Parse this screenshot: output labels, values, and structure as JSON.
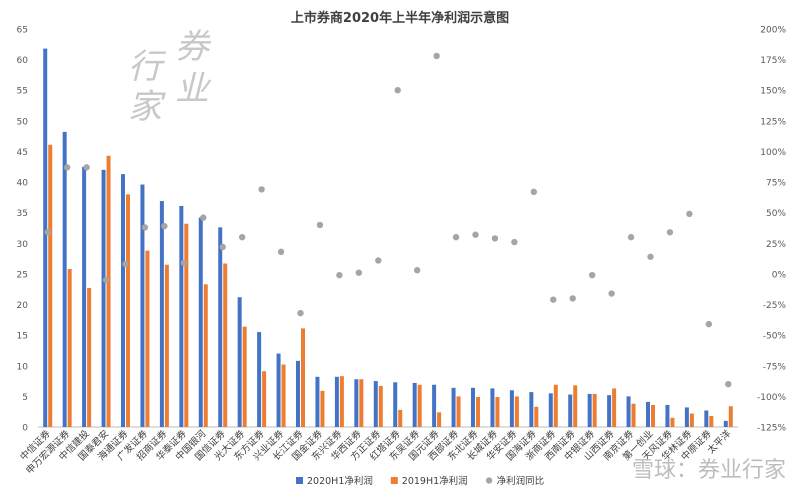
{
  "chart_data": {
    "type": "bar",
    "title": "上市券商2020年上半年净利润示意图",
    "categories": [
      "中信证券",
      "申万宏源证券",
      "中信建投",
      "国泰君安",
      "海通证券",
      "广发证券",
      "招商证券",
      "华泰证券",
      "中国银河",
      "国信证券",
      "光大证券",
      "东方证券",
      "兴业证券",
      "长江证券",
      "国金证券",
      "东兴证券",
      "华西证券",
      "方正证券",
      "红塔证券",
      "东吴证券",
      "国元证券",
      "西部证券",
      "东北证券",
      "长城证券",
      "华安证券",
      "国海证券",
      "浙商证券",
      "西南证券",
      "中银证券",
      "山西证券",
      "南京证券",
      "第一创业",
      "天风证券",
      "华林证券",
      "中原证券",
      "太平洋"
    ],
    "series": [
      {
        "name": "2020H1净利润",
        "color": "#4472c4",
        "axis": "left",
        "values": [
          61.8,
          48.2,
          42.5,
          42.0,
          41.3,
          39.6,
          36.9,
          36.1,
          34.2,
          32.6,
          21.2,
          15.5,
          12.0,
          10.8,
          8.2,
          8.2,
          7.8,
          7.5,
          7.3,
          7.2,
          6.9,
          6.4,
          6.4,
          6.3,
          6.0,
          5.7,
          5.5,
          5.3,
          5.4,
          5.2,
          5.0,
          4.1,
          3.6,
          3.2,
          2.7,
          1.0
        ]
      },
      {
        "name": "2019H1净利润",
        "color": "#ed7d31",
        "axis": "left",
        "values": [
          46.1,
          25.8,
          22.7,
          44.3,
          38.0,
          28.8,
          26.5,
          33.2,
          23.3,
          26.7,
          16.4,
          9.1,
          10.2,
          16.1,
          5.9,
          8.3,
          7.8,
          6.7,
          2.8,
          6.9,
          2.4,
          5.0,
          4.9,
          4.9,
          5.0,
          3.3,
          6.9,
          6.8,
          5.4,
          6.3,
          3.8,
          3.6,
          1.5,
          2.2,
          1.8,
          3.4
        ]
      },
      {
        "name": "净利润同比",
        "color": "#a5a5a5",
        "axis": "right",
        "values": [
          34,
          87,
          87,
          -5,
          8,
          38,
          39,
          9,
          46,
          22,
          30,
          69,
          18,
          -32,
          40,
          -1,
          1,
          11,
          150,
          3,
          178,
          30,
          32,
          29,
          26,
          67,
          -21,
          -20,
          -1,
          -16,
          30,
          14,
          34,
          49,
          -41,
          -90
        ]
      }
    ],
    "y_left": {
      "min": 0,
      "max": 65,
      "step": 5
    },
    "y_right": {
      "min": -125,
      "max": 200,
      "step": 25,
      "unit": "%"
    },
    "legend_position": "bottom",
    "grid": false
  },
  "watermark": {
    "chars": [
      "行",
      "券",
      "家",
      "业"
    ],
    "bottom_text": "雪球：券业行家"
  }
}
